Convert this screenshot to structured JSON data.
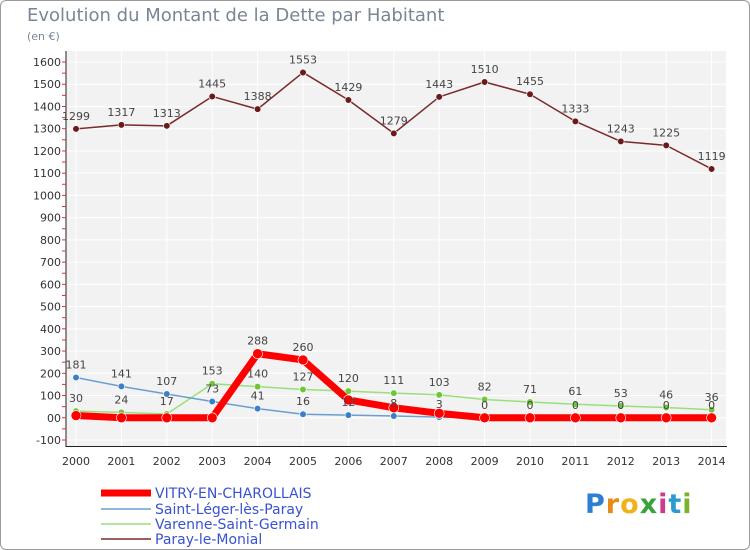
{
  "header": {
    "title": "Evolution du Montant de la Dette par Habitant",
    "unit": "(en €)"
  },
  "logo": {
    "text": "Proxiti"
  },
  "chart_data": {
    "type": "line",
    "title": "Evolution du Montant de la Dette par Habitant",
    "subtitle": "(en €)",
    "x": [
      "2000",
      "2001",
      "2002",
      "2003",
      "2004",
      "2005",
      "2006",
      "2007",
      "2008",
      "2009",
      "2010",
      "2011",
      "2012",
      "2013",
      "2014"
    ],
    "yticks": [
      "1600",
      "1500",
      "1400",
      "1300",
      "1200",
      "1100",
      "1000",
      "900",
      "800",
      "700",
      "600",
      "500",
      "400",
      "300",
      "200",
      "100",
      "00",
      "-100"
    ],
    "ylim": [
      -100,
      1600
    ],
    "grid": true,
    "legend_position": "bottom-left",
    "series": [
      {
        "name": "VITRY-EN-CHAROLLAIS",
        "color": "#ff0000",
        "marker_color": "#ff0000",
        "values": [
          10,
          0,
          0,
          0,
          288,
          260,
          80,
          45,
          20,
          0,
          0,
          0,
          0,
          0,
          0
        ],
        "labels": [
          "",
          "",
          "",
          "",
          "288",
          "260",
          "",
          "",
          "",
          "",
          "",
          "",
          "",
          "",
          ""
        ]
      },
      {
        "name": "Saint-Léger-lès-Paray",
        "color": "#6a9fd0",
        "marker_color": "#3a7fc8",
        "values": [
          181,
          141,
          107,
          73,
          41,
          16,
          12,
          8,
          3,
          0,
          0,
          0,
          0,
          0,
          0
        ],
        "labels": [
          "181",
          "141",
          "107",
          "73",
          "41",
          "16",
          "12",
          "8",
          "3",
          "0",
          "0",
          "0",
          "0",
          "0",
          "0"
        ]
      },
      {
        "name": "Varenne-Saint-Germain",
        "color": "#99e07a",
        "marker_color": "#6cc83a",
        "values": [
          30,
          24,
          17,
          153,
          140,
          127,
          120,
          111,
          103,
          82,
          71,
          61,
          53,
          46,
          36
        ],
        "labels": [
          "30",
          "24",
          "17",
          "153",
          "140",
          "127",
          "120",
          "111",
          "103",
          "82",
          "71",
          "61",
          "53",
          "46",
          "36"
        ]
      },
      {
        "name": "Paray-le-Monial",
        "color": "#7a2a2a",
        "marker_color": "#6a1a1a",
        "values": [
          1299,
          1317,
          1313,
          1445,
          1388,
          1553,
          1429,
          1279,
          1443,
          1510,
          1455,
          1333,
          1243,
          1225,
          1119
        ],
        "labels": [
          "1299",
          "1317",
          "1313",
          "1445",
          "1388",
          "1553",
          "1429",
          "1279",
          "1443",
          "1510",
          "1455",
          "1333",
          "1243",
          "1225",
          "1119"
        ]
      }
    ]
  }
}
